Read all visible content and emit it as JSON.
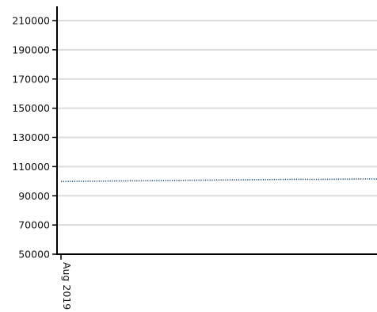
{
  "chart_data": {
    "type": "line",
    "title": "",
    "xlabel": "",
    "ylabel": "",
    "ylim": [
      50000,
      210000
    ],
    "y_ticks": [
      210000,
      190000,
      170000,
      150000,
      130000,
      110000,
      90000,
      70000,
      50000
    ],
    "x_tick_labels": [
      "Aug 2019"
    ],
    "grid": true,
    "legend": "none",
    "series": [
      {
        "style": "dotted",
        "color": "#1f4e79",
        "values": [
          99800,
          99900,
          100000,
          100100,
          100200,
          100300,
          100400,
          100500,
          100600,
          100700,
          100800,
          100900,
          101000,
          101100,
          101200,
          101300,
          101200,
          101300,
          101400,
          101500,
          101500
        ]
      }
    ]
  },
  "colors": {
    "grid": "#dcdcdc",
    "axis": "#000000",
    "series": "#1f4e79"
  }
}
